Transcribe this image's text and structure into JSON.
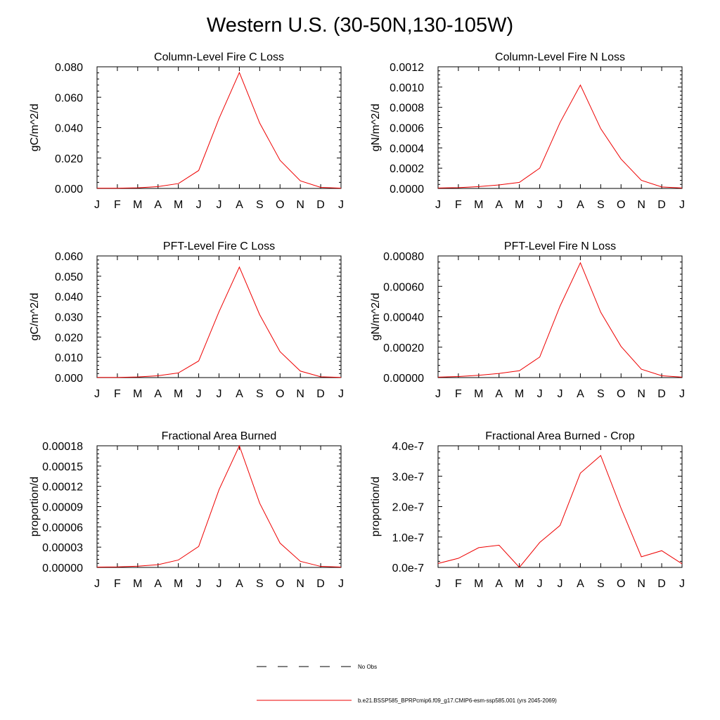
{
  "title": "Western U.S. (30-50N,130-105W)",
  "months": [
    "J",
    "F",
    "M",
    "A",
    "M",
    "J",
    "J",
    "A",
    "S",
    "O",
    "N",
    "D",
    "J"
  ],
  "legend": {
    "obs_label": "No Obs",
    "model_label": "b.e21.BSSP585_BPRPcmip6.f09_g17.CMIP6-esm-ssp585.001 (yrs 2045-2069)"
  },
  "colors": {
    "series": "#ee0000",
    "axis": "#000000"
  },
  "chart_data": [
    {
      "type": "line",
      "title": "Column-Level Fire C Loss",
      "ylabel": "gC/m^2/d",
      "ylim": [
        0,
        0.08
      ],
      "yticks": [
        "0.000",
        "0.020",
        "0.040",
        "0.060",
        "0.080"
      ],
      "x": [
        "J",
        "F",
        "M",
        "A",
        "M",
        "J",
        "J",
        "A",
        "S",
        "O",
        "N",
        "D",
        "J"
      ],
      "series": [
        {
          "name": "b.e21.BSSP585_BPRPcmip6.f09_g17.CMIP6-esm-ssp585.001 (yrs 2045-2069)",
          "values": [
            0.0002,
            0.0002,
            0.0004,
            0.0012,
            0.0032,
            0.0118,
            0.046,
            0.0762,
            0.043,
            0.0185,
            0.005,
            0.0007,
            0.0002
          ]
        }
      ]
    },
    {
      "type": "line",
      "title": "Column-Level Fire N Loss",
      "ylabel": "gN/m^2/d",
      "ylim": [
        0,
        0.0012
      ],
      "yticks": [
        "0.0000",
        "0.0002",
        "0.0004",
        "0.0006",
        "0.0008",
        "0.0010",
        "0.0012"
      ],
      "x": [
        "J",
        "F",
        "M",
        "A",
        "M",
        "J",
        "J",
        "A",
        "S",
        "O",
        "N",
        "D",
        "J"
      ],
      "series": [
        {
          "name": "b.e21.BSSP585_BPRPcmip6.f09_g17.CMIP6-esm-ssp585.001 (yrs 2045-2069)",
          "values": [
            4e-06,
            8e-06,
            1.8e-05,
            3.5e-05,
            6e-05,
            0.0002,
            0.00065,
            0.00102,
            0.00059,
            0.00029,
            8e-05,
            1.5e-05,
            4e-06
          ]
        }
      ]
    },
    {
      "type": "line",
      "title": "PFT-Level Fire C Loss",
      "ylabel": "gC/m^2/d",
      "ylim": [
        0,
        0.06
      ],
      "yticks": [
        "0.000",
        "0.010",
        "0.020",
        "0.030",
        "0.040",
        "0.050",
        "0.060"
      ],
      "x": [
        "J",
        "F",
        "M",
        "A",
        "M",
        "J",
        "J",
        "A",
        "S",
        "O",
        "N",
        "D",
        "J"
      ],
      "series": [
        {
          "name": "b.e21.BSSP585_BPRPcmip6.f09_g17.CMIP6-esm-ssp585.001 (yrs 2045-2069)",
          "values": [
            0.0001,
            0.0001,
            0.0003,
            0.0009,
            0.0023,
            0.0082,
            0.0325,
            0.0545,
            0.031,
            0.0128,
            0.0032,
            0.0004,
            0.0001
          ]
        }
      ]
    },
    {
      "type": "line",
      "title": "PFT-Level Fire N Loss",
      "ylabel": "gN/m^2/d",
      "ylim": [
        0,
        0.0008
      ],
      "yticks": [
        "0.00000",
        "0.00020",
        "0.00040",
        "0.00060",
        "0.00080"
      ],
      "x": [
        "J",
        "F",
        "M",
        "A",
        "M",
        "J",
        "J",
        "A",
        "S",
        "O",
        "N",
        "D",
        "J"
      ],
      "series": [
        {
          "name": "b.e21.BSSP585_BPRPcmip6.f09_g17.CMIP6-esm-ssp585.001 (yrs 2045-2069)",
          "values": [
            3e-06,
            7e-06,
            1.5e-05,
            2.7e-05,
            4.5e-05,
            0.000135,
            0.00047,
            0.000755,
            0.00043,
            0.000205,
            5.5e-05,
            1.2e-05,
            3e-06
          ]
        }
      ]
    },
    {
      "type": "line",
      "title": "Fractional Area Burned",
      "ylabel": "proportion/d",
      "ylim": [
        0,
        0.00018
      ],
      "yticks": [
        "0.00000",
        "0.00003",
        "0.00006",
        "0.00009",
        "0.00012",
        "0.00015",
        "0.00018"
      ],
      "x": [
        "J",
        "F",
        "M",
        "A",
        "M",
        "J",
        "J",
        "A",
        "S",
        "O",
        "N",
        "D",
        "J"
      ],
      "series": [
        {
          "name": "b.e21.BSSP585_BPRPcmip6.f09_g17.CMIP6-esm-ssp585.001 (yrs 2045-2069)",
          "values": [
            5e-07,
            8e-07,
            1.8e-06,
            4e-06,
            1.1e-05,
            3.1e-05,
            0.000115,
            0.00018,
            9.5e-05,
            3.6e-05,
            9e-06,
            1.5e-06,
            5e-07
          ]
        }
      ]
    },
    {
      "type": "line",
      "title": "Fractional Area Burned - Crop",
      "ylabel": "proportion/d",
      "ylim": [
        0,
        4e-07
      ],
      "yticks": [
        "0.0e-7",
        "1.0e-7",
        "2.0e-7",
        "3.0e-7",
        "4.0e-7"
      ],
      "x": [
        "J",
        "F",
        "M",
        "A",
        "M",
        "J",
        "J",
        "A",
        "S",
        "O",
        "N",
        "D",
        "J"
      ],
      "series": [
        {
          "name": "b.e21.BSSP585_BPRPcmip6.f09_g17.CMIP6-esm-ssp585.001 (yrs 2045-2069)",
          "values": [
            1.3e-08,
            3e-08,
            6.5e-08,
            7.3e-08,
            0,
            8.2e-08,
            1.38e-07,
            3.1e-07,
            3.68e-07,
            1.95e-07,
            3.5e-08,
            5.5e-08,
            1.2e-08
          ]
        }
      ]
    }
  ]
}
